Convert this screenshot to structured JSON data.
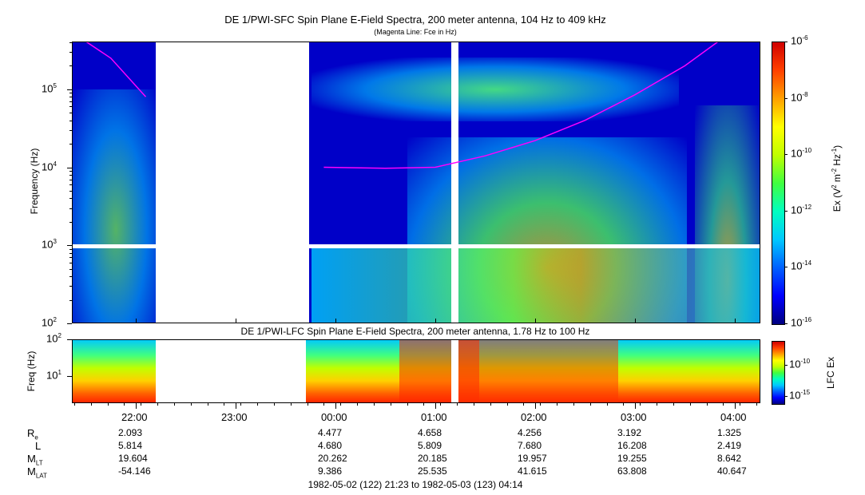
{
  "sfc_title": "DE 1/PWI-SFC  Spin Plane E-Field Spectra, 200 meter antenna, 104 Hz to 409 kHz",
  "sfc_subtitle": "(Magenta Line: Fce in Hz)",
  "lfc_title": "DE 1/PWI-LFC  Spin Plane E-Field Spectra, 200 meter antenna, 1.78 Hz to 100 Hz",
  "footer": "1982-05-02 (122) 21:23 to 1982-05-03 (123) 04:14",
  "colors": {
    "background": "#0000c8",
    "magenta_line": "#ff00ff",
    "colorbar": [
      "#000080",
      "#0000ff",
      "#0060ff",
      "#00c8ff",
      "#00ffc0",
      "#40ff40",
      "#c0ff00",
      "#ffff00",
      "#ffa000",
      "#ff4000",
      "#d00000"
    ]
  },
  "chart_data": [
    {
      "type": "heatmap",
      "name": "DE 1/PWI-SFC",
      "title": "DE 1/PWI-SFC  Spin Plane E-Field Spectra, 200 meter antenna, 104 Hz to 409 kHz",
      "ylabel": "Frequency (Hz)",
      "yscale": "log",
      "ylim": [
        100,
        409000
      ],
      "yticks": [
        {
          "label": "10",
          "exp": "2"
        },
        {
          "label": "10",
          "exp": "3"
        },
        {
          "label": "10",
          "exp": "4"
        },
        {
          "label": "10",
          "exp": "5"
        }
      ],
      "xlim": [
        "1982-05-02 21:23",
        "1982-05-03 04:14"
      ],
      "data_gaps": [
        [
          "22:08",
          "23:53"
        ],
        [
          "01:01",
          "01:06"
        ]
      ],
      "colorbar": {
        "label": "Ex (V",
        "label_parts": [
          "Ex (V",
          "2",
          " m",
          "-2",
          " Hz",
          "-1",
          ")"
        ],
        "scale": "log",
        "range": [
          1e-16,
          1e-06
        ],
        "ticks": [
          {
            "label": "10",
            "exp": "-6"
          },
          {
            "label": "10",
            "exp": "-8"
          },
          {
            "label": "10",
            "exp": "-10"
          },
          {
            "label": "10",
            "exp": "-12"
          },
          {
            "label": "10",
            "exp": "-14"
          },
          {
            "label": "10",
            "exp": "-16"
          }
        ]
      },
      "magenta_line": {
        "name": "Fce in Hz",
        "points": [
          [
            "21:30",
            409000
          ],
          [
            "21:45",
            250000
          ],
          [
            "22:06",
            80000
          ],
          [
            "23:53",
            10000
          ],
          [
            "00:30",
            9700
          ],
          [
            "01:00",
            10000
          ],
          [
            "01:30",
            14000
          ],
          [
            "02:00",
            22000
          ],
          [
            "02:30",
            40000
          ],
          [
            "03:00",
            85000
          ],
          [
            "03:30",
            200000
          ],
          [
            "03:50",
            409000
          ]
        ]
      }
    },
    {
      "type": "heatmap",
      "name": "DE 1/PWI-LFC",
      "title": "DE 1/PWI-LFC  Spin Plane E-Field Spectra, 200 meter antenna, 1.78 Hz to 100 Hz",
      "ylabel": "Freq (Hz)",
      "yscale": "log",
      "ylim": [
        1.78,
        100
      ],
      "yticks": [
        {
          "label": "10",
          "exp": "1"
        },
        {
          "label": "10",
          "exp": "2"
        }
      ],
      "colorbar": {
        "label": "LFC Ex",
        "scale": "log",
        "ticks": [
          {
            "label": "10",
            "exp": "-10"
          },
          {
            "label": "10",
            "exp": "-15"
          }
        ]
      },
      "xticks": [
        "22:00",
        "23:00",
        "00:00",
        "01:00",
        "02:00",
        "03:00",
        "04:00"
      ]
    }
  ],
  "ephemeris": {
    "rows": [
      {
        "label": "R",
        "sub": "e",
        "values": [
          "2.093",
          "4.477",
          "4.658",
          "4.256",
          "3.192",
          "1.325"
        ]
      },
      {
        "label": "L",
        "sub": "",
        "values": [
          "5.814",
          "4.680",
          "5.809",
          "7.680",
          "16.208",
          "2.419"
        ]
      },
      {
        "label": "M",
        "sub": "LT",
        "values": [
          "19.604",
          "20.262",
          "20.185",
          "19.957",
          "19.255",
          "8.642"
        ]
      },
      {
        "label": "M",
        "sub": "LAT",
        "values": [
          "-54.146",
          "9.386",
          "25.535",
          "41.615",
          "63.808",
          "40.647"
        ]
      }
    ],
    "columns": [
      "22:00",
      "00:00",
      "01:00",
      "02:00",
      "03:00",
      "04:00"
    ]
  }
}
